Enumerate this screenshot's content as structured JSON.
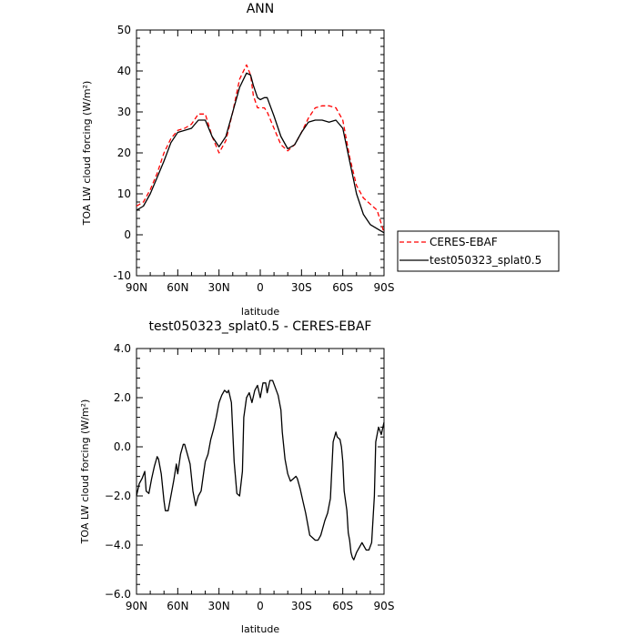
{
  "chart_data": [
    {
      "type": "line",
      "title": "ANN",
      "xlabel": "latitude",
      "ylabel": "TOA LW cloud forcing (W/m²)",
      "ylim": [
        -10,
        50
      ],
      "yticks": [
        -10,
        0,
        10,
        20,
        30,
        40,
        50
      ],
      "xlim": [
        90,
        -90
      ],
      "xticks": [
        90,
        60,
        30,
        0,
        -30,
        -60,
        -90
      ],
      "xtick_labels": [
        "90N",
        "60N",
        "30N",
        "0",
        "30S",
        "60S",
        "90S"
      ],
      "grid": false,
      "legend_position": "right",
      "series": [
        {
          "name": "CERES-EBAF",
          "color": "#ff0000",
          "style": "dashed",
          "x": [
            90,
            85,
            80,
            75,
            70,
            65,
            60,
            55,
            50,
            45,
            40,
            35,
            30,
            25,
            20,
            15,
            10,
            7,
            5,
            2,
            0,
            -3,
            -5,
            -10,
            -15,
            -20,
            -25,
            -30,
            -35,
            -40,
            -45,
            -50,
            -55,
            -60,
            -65,
            -70,
            -75,
            -80,
            -85,
            -90
          ],
          "values": [
            7,
            8,
            11,
            15,
            20,
            23.5,
            25.5,
            26,
            27,
            29.5,
            29.5,
            24,
            20,
            23,
            30,
            38,
            41.5,
            39,
            34,
            31,
            31,
            31,
            30,
            26,
            22,
            20.5,
            22,
            25,
            28.5,
            31,
            31.5,
            31.5,
            31,
            28,
            19,
            12,
            9,
            7.5,
            6,
            0.5
          ]
        },
        {
          "name": "test050323_splat0.5",
          "color": "#000000",
          "style": "solid",
          "x": [
            90,
            85,
            80,
            75,
            70,
            65,
            60,
            55,
            50,
            45,
            40,
            35,
            30,
            25,
            20,
            15,
            10,
            7,
            5,
            2,
            0,
            -3,
            -5,
            -10,
            -15,
            -20,
            -25,
            -30,
            -35,
            -40,
            -45,
            -50,
            -55,
            -60,
            -65,
            -70,
            -75,
            -80,
            -85,
            -90
          ],
          "values": [
            6,
            7,
            10,
            14,
            18,
            22.5,
            25,
            25.5,
            26,
            28,
            28,
            24,
            21.5,
            24,
            30,
            36,
            39.5,
            39,
            36.5,
            33.5,
            33,
            33.5,
            33.5,
            29,
            24,
            21,
            22,
            25,
            27.5,
            28,
            28,
            27.5,
            28,
            26,
            18,
            10,
            5,
            2.5,
            1.5,
            0.5
          ]
        }
      ]
    },
    {
      "type": "line",
      "title": "test050323_splat0.5 - CERES-EBAF",
      "xlabel": "latitude",
      "ylabel": "TOA LW cloud forcing (W/m²)",
      "ylim": [
        -6,
        4
      ],
      "yticks": [
        -6,
        -4,
        -2,
        0,
        2,
        4
      ],
      "ytick_labels": [
        "−6.0",
        "−4.0",
        "−2.0",
        "0.0",
        "2.0",
        "4.0"
      ],
      "xlim": [
        90,
        -90
      ],
      "xticks": [
        90,
        60,
        30,
        0,
        -30,
        -60,
        -90
      ],
      "xtick_labels": [
        "90N",
        "60N",
        "30N",
        "0",
        "30S",
        "60S",
        "90S"
      ],
      "grid": false,
      "series": [
        {
          "color": "#000000",
          "style": "solid",
          "x": [
            90,
            88,
            86,
            84,
            83,
            81,
            79,
            77,
            75,
            74,
            72,
            70,
            69,
            67,
            65,
            63,
            61,
            60,
            58,
            56,
            55,
            53,
            51,
            49,
            47,
            45,
            43,
            41,
            40,
            38,
            36,
            34,
            32,
            30,
            28,
            26,
            24,
            23,
            21,
            19,
            17,
            15,
            13,
            12,
            10,
            8,
            6,
            4,
            2,
            0,
            -2,
            -4,
            -5,
            -7,
            -9,
            -11,
            -13,
            -15,
            -16,
            -18,
            -20,
            -22,
            -24,
            -26,
            -27,
            -29,
            -31,
            -33,
            -35,
            -36,
            -38,
            -40,
            -42,
            -44,
            -46,
            -47,
            -49,
            -51,
            -53,
            -55,
            -56,
            -58,
            -59,
            -60,
            -61,
            -63,
            -64,
            -65,
            -66,
            -67,
            -68,
            -70,
            -72,
            -74,
            -75,
            -77,
            -79,
            -81,
            -83,
            -84,
            -86,
            -88,
            -90
          ],
          "values": [
            -2.0,
            -1.5,
            -1.3,
            -1.0,
            -1.8,
            -1.9,
            -1.3,
            -0.8,
            -0.4,
            -0.5,
            -1.1,
            -2.2,
            -2.6,
            -2.6,
            -2.0,
            -1.4,
            -0.7,
            -1.1,
            -0.3,
            0.1,
            0.1,
            -0.3,
            -0.7,
            -1.8,
            -2.4,
            -2.0,
            -1.8,
            -1.0,
            -0.6,
            -0.3,
            0.3,
            0.7,
            1.2,
            1.8,
            2.1,
            2.3,
            2.2,
            2.3,
            1.8,
            -0.6,
            -1.9,
            -2.0,
            -1.0,
            1.2,
            2.0,
            2.2,
            1.8,
            2.3,
            2.5,
            2.0,
            2.6,
            2.6,
            2.2,
            2.7,
            2.7,
            2.4,
            2.1,
            1.5,
            0.6,
            -0.5,
            -1.1,
            -1.4,
            -1.3,
            -1.2,
            -1.3,
            -1.7,
            -2.2,
            -2.7,
            -3.3,
            -3.6,
            -3.7,
            -3.8,
            -3.8,
            -3.6,
            -3.2,
            -3.0,
            -2.7,
            -2.1,
            0.2,
            0.6,
            0.4,
            0.3,
            0.0,
            -0.6,
            -1.8,
            -2.6,
            -3.5,
            -3.8,
            -4.3,
            -4.5,
            -4.6,
            -4.3,
            -4.1,
            -3.9,
            -4.0,
            -4.2,
            -4.2,
            -3.9,
            -2.0,
            0.2,
            0.8,
            0.5,
            1.0
          ]
        }
      ]
    }
  ]
}
